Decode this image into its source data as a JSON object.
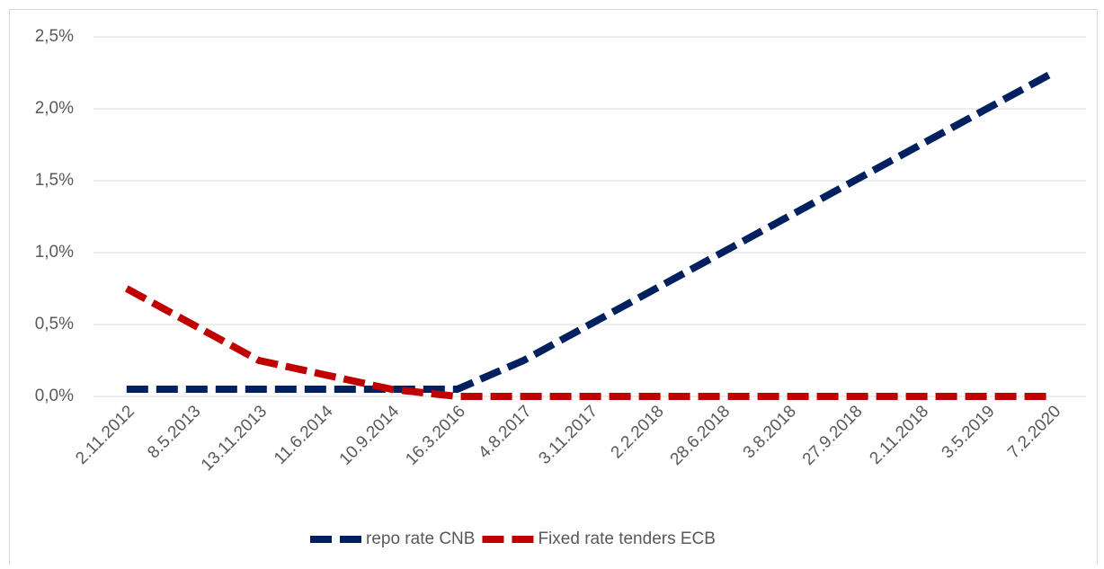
{
  "chart_data": {
    "type": "line",
    "categories": [
      "2.11.2012",
      "8.5.2013",
      "13.11.2013",
      "11.6.2014",
      "10.9.2014",
      "16.3.2016",
      "4.8.2017",
      "3.11.2017",
      "2.2.2018",
      "28.6.2018",
      "3.8.2018",
      "27.9.2018",
      "2.11.2018",
      "3.5.2019",
      "7.2.2020"
    ],
    "series": [
      {
        "name": "repo rate CNB",
        "color": "#002060",
        "values": [
          0.05,
          0.05,
          0.05,
          0.05,
          0.05,
          0.05,
          0.25,
          0.5,
          0.75,
          1.0,
          1.25,
          1.5,
          1.75,
          2.0,
          2.25
        ]
      },
      {
        "name": "Fixed rate tenders ECB",
        "color": "#c00000",
        "values": [
          0.75,
          0.5,
          0.25,
          0.15,
          0.05,
          0,
          0,
          0,
          0,
          0,
          0,
          0,
          0,
          0,
          0
        ]
      }
    ],
    "ylim": [
      0,
      2.5
    ],
    "yticks": [
      {
        "value": 0,
        "label": "0,0%"
      },
      {
        "value": 0.5,
        "label": "0,5%"
      },
      {
        "value": 1.0,
        "label": "1,0%"
      },
      {
        "value": 1.5,
        "label": "1,5%"
      },
      {
        "value": 2.0,
        "label": "2,0%"
      },
      {
        "value": 2.5,
        "label": "2,5%"
      }
    ],
    "grid": true,
    "legend": "bottom"
  }
}
